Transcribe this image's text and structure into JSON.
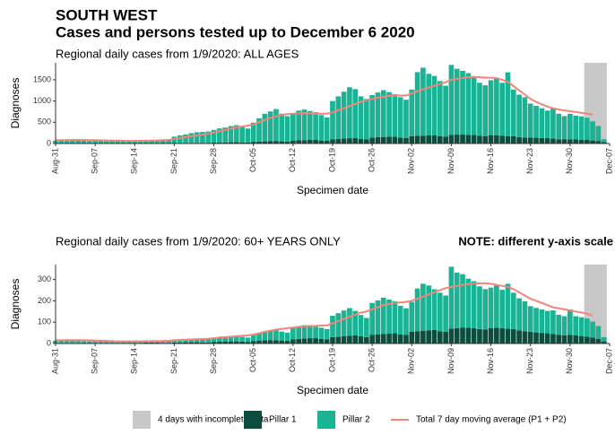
{
  "header": {
    "title": "SOUTH WEST",
    "subtitle": "Cases and persons tested up to December  6 2020"
  },
  "legend": {
    "incomplete_days": 4,
    "incomplete_label": "4 days with incomplete data",
    "incomplete_color": "#c8c8c8"
  },
  "chart_data": [
    {
      "type": "bar",
      "stacked": true,
      "title": "Regional daily cases from 1/9/2020: ALL AGES",
      "xlabel": "Specimen date",
      "ylabel": "Diagnoses",
      "categories": [
        "Aug-31",
        null,
        null,
        null,
        null,
        null,
        null,
        "Sep-07",
        null,
        null,
        null,
        null,
        null,
        null,
        "Sep-14",
        null,
        null,
        null,
        null,
        null,
        null,
        "Sep-21",
        null,
        null,
        null,
        null,
        null,
        null,
        "Sep-28",
        null,
        null,
        null,
        null,
        null,
        null,
        "Oct-05",
        null,
        null,
        null,
        null,
        null,
        null,
        "Oct-12",
        null,
        null,
        null,
        null,
        null,
        null,
        "Oct-19",
        null,
        null,
        null,
        null,
        null,
        null,
        "Oct-26",
        null,
        null,
        null,
        null,
        null,
        null,
        "Nov-02",
        null,
        null,
        null,
        null,
        null,
        null,
        "Nov-09",
        null,
        null,
        null,
        null,
        null,
        null,
        "Nov-16",
        null,
        null,
        null,
        null,
        null,
        null,
        "Nov-23",
        null,
        null,
        null,
        null,
        null,
        null,
        "Nov-30",
        null,
        null,
        null,
        null,
        null,
        null,
        "Dec-07"
      ],
      "ylim": [
        0,
        1900
      ],
      "yticks": [
        0,
        500,
        1000,
        1500
      ],
      "series": [
        {
          "name": "Pillar 1",
          "color": "#0d4d3e",
          "values": [
            5,
            6,
            5,
            6,
            5,
            4,
            4,
            6,
            6,
            7,
            6,
            6,
            5,
            5,
            6,
            7,
            7,
            8,
            7,
            6,
            6,
            10,
            12,
            12,
            14,
            15,
            12,
            12,
            20,
            25,
            25,
            30,
            30,
            25,
            22,
            40,
            45,
            50,
            55,
            60,
            50,
            45,
            70,
            75,
            80,
            85,
            85,
            70,
            65,
            100,
            110,
            120,
            125,
            130,
            110,
            100,
            140,
            150,
            155,
            160,
            160,
            140,
            130,
            170,
            180,
            185,
            190,
            190,
            170,
            160,
            200,
            210,
            210,
            205,
            200,
            180,
            170,
            190,
            190,
            180,
            175,
            170,
            150,
            140,
            140,
            135,
            130,
            125,
            120,
            100,
            95,
            100,
            95,
            90,
            85,
            70,
            60,
            30,
            null
          ]
        },
        {
          "name": "Pillar 2",
          "color": "#1ab394",
          "values": [
            60,
            70,
            75,
            80,
            70,
            60,
            55,
            60,
            65,
            60,
            55,
            60,
            50,
            45,
            55,
            60,
            65,
            70,
            75,
            80,
            90,
            150,
            180,
            200,
            230,
            250,
            260,
            270,
            300,
            330,
            350,
            380,
            400,
            360,
            330,
            450,
            550,
            650,
            700,
            750,
            650,
            600,
            620,
            700,
            720,
            680,
            650,
            600,
            550,
            900,
            1000,
            1100,
            1200,
            1150,
            1000,
            950,
            1000,
            1050,
            1100,
            1050,
            1000,
            950,
            900,
            1100,
            1500,
            1600,
            1450,
            1400,
            1300,
            1200,
            1650,
            1550,
            1500,
            1450,
            1350,
            1250,
            1200,
            1300,
            1350,
            1250,
            1500,
            1100,
            1000,
            950,
            800,
            750,
            700,
            650,
            700,
            600,
            550,
            600,
            560,
            550,
            520,
            450,
            350,
            70,
            null
          ]
        },
        {
          "name": "Total 7 day moving average (P1 + P2)",
          "type": "line",
          "color": "#f2857a",
          "values": [
            80,
            80,
            82,
            85,
            85,
            85,
            80,
            78,
            75,
            72,
            70,
            68,
            65,
            62,
            62,
            63,
            65,
            68,
            72,
            78,
            85,
            110,
            130,
            150,
            170,
            190,
            210,
            230,
            260,
            290,
            320,
            350,
            380,
            400,
            420,
            450,
            500,
            550,
            600,
            640,
            670,
            690,
            700,
            710,
            710,
            710,
            700,
            700,
            700,
            730,
            780,
            830,
            880,
            930,
            980,
            1020,
            1050,
            1080,
            1100,
            1120,
            1130,
            1130,
            1130,
            1180,
            1230,
            1280,
            1320,
            1360,
            1400,
            1440,
            1500,
            1520,
            1540,
            1560,
            1570,
            1560,
            1550,
            1550,
            1540,
            1500,
            1450,
            1350,
            1250,
            1150,
            1050,
            980,
            920,
            870,
            830,
            800,
            780,
            760,
            740,
            720,
            700,
            680,
            null,
            null,
            null
          ]
        }
      ]
    },
    {
      "type": "bar",
      "stacked": true,
      "title": "Regional daily cases from 1/9/2020: 60+ YEARS ONLY",
      "note": "NOTE: different y-axis scale",
      "xlabel": "Specimen date",
      "ylabel": "Diagnoses",
      "categories": [
        "Aug-31",
        null,
        null,
        null,
        null,
        null,
        null,
        "Sep-07",
        null,
        null,
        null,
        null,
        null,
        null,
        "Sep-14",
        null,
        null,
        null,
        null,
        null,
        null,
        "Sep-21",
        null,
        null,
        null,
        null,
        null,
        null,
        "Sep-28",
        null,
        null,
        null,
        null,
        null,
        null,
        "Oct-05",
        null,
        null,
        null,
        null,
        null,
        null,
        "Oct-12",
        null,
        null,
        null,
        null,
        null,
        null,
        "Oct-19",
        null,
        null,
        null,
        null,
        null,
        null,
        "Oct-26",
        null,
        null,
        null,
        null,
        null,
        null,
        "Nov-02",
        null,
        null,
        null,
        null,
        null,
        null,
        "Nov-09",
        null,
        null,
        null,
        null,
        null,
        null,
        "Nov-16",
        null,
        null,
        null,
        null,
        null,
        null,
        "Nov-23",
        null,
        null,
        null,
        null,
        null,
        null,
        "Nov-30",
        null,
        null,
        null,
        null,
        null,
        null,
        "Dec-07"
      ],
      "ylim": [
        0,
        370
      ],
      "yticks": [
        0,
        100,
        200,
        300
      ],
      "series": [
        {
          "color": "#0d4d3e",
          "values": [
            3,
            3,
            3,
            3,
            3,
            2,
            2,
            3,
            3,
            3,
            3,
            3,
            2,
            2,
            3,
            3,
            4,
            4,
            4,
            3,
            3,
            5,
            5,
            6,
            6,
            6,
            5,
            5,
            8,
            9,
            10,
            10,
            10,
            9,
            8,
            12,
            14,
            15,
            16,
            16,
            14,
            13,
            20,
            22,
            24,
            25,
            25,
            22,
            20,
            30,
            32,
            35,
            36,
            38,
            34,
            30,
            40,
            42,
            45,
            46,
            48,
            42,
            40,
            55,
            58,
            60,
            62,
            64,
            58,
            55,
            70,
            72,
            75,
            74,
            72,
            68,
            65,
            72,
            74,
            72,
            70,
            68,
            62,
            58,
            55,
            52,
            50,
            48,
            45,
            40,
            38,
            40,
            38,
            35,
            32,
            28,
            22,
            10,
            null
          ]
        },
        {
          "color": "#1ab394",
          "values": [
            10,
            12,
            10,
            12,
            11,
            9,
            8,
            8,
            9,
            8,
            8,
            7,
            6,
            6,
            6,
            6,
            7,
            7,
            8,
            8,
            9,
            10,
            12,
            14,
            15,
            16,
            15,
            14,
            18,
            20,
            22,
            24,
            26,
            22,
            20,
            30,
            35,
            40,
            45,
            48,
            42,
            38,
            55,
            60,
            62,
            60,
            58,
            52,
            48,
            100,
            110,
            120,
            130,
            115,
            100,
            90,
            150,
            160,
            170,
            160,
            150,
            135,
            125,
            140,
            200,
            220,
            210,
            190,
            180,
            170,
            290,
            260,
            250,
            230,
            220,
            200,
            190,
            190,
            200,
            180,
            210,
            170,
            150,
            140,
            120,
            115,
            110,
            105,
            110,
            95,
            90,
            120,
            90,
            88,
            85,
            75,
            60,
            20,
            null
          ]
        },
        {
          "type": "line",
          "color": "#f2857a",
          "values": [
            15,
            15,
            16,
            16,
            16,
            15,
            15,
            14,
            13,
            12,
            11,
            10,
            10,
            10,
            10,
            10,
            11,
            11,
            11,
            12,
            13,
            15,
            17,
            18,
            19,
            20,
            21,
            22,
            25,
            28,
            30,
            32,
            34,
            36,
            38,
            42,
            48,
            55,
            60,
            65,
            68,
            72,
            75,
            78,
            80,
            82,
            82,
            84,
            85,
            95,
            105,
            115,
            125,
            135,
            145,
            150,
            160,
            170,
            180,
            185,
            190,
            192,
            195,
            200,
            210,
            220,
            230,
            240,
            250,
            260,
            265,
            270,
            275,
            278,
            280,
            282,
            282,
            280,
            275,
            270,
            265,
            255,
            240,
            225,
            210,
            200,
            190,
            180,
            170,
            165,
            160,
            155,
            150,
            145,
            140,
            130,
            null,
            null,
            null
          ]
        }
      ]
    }
  ]
}
